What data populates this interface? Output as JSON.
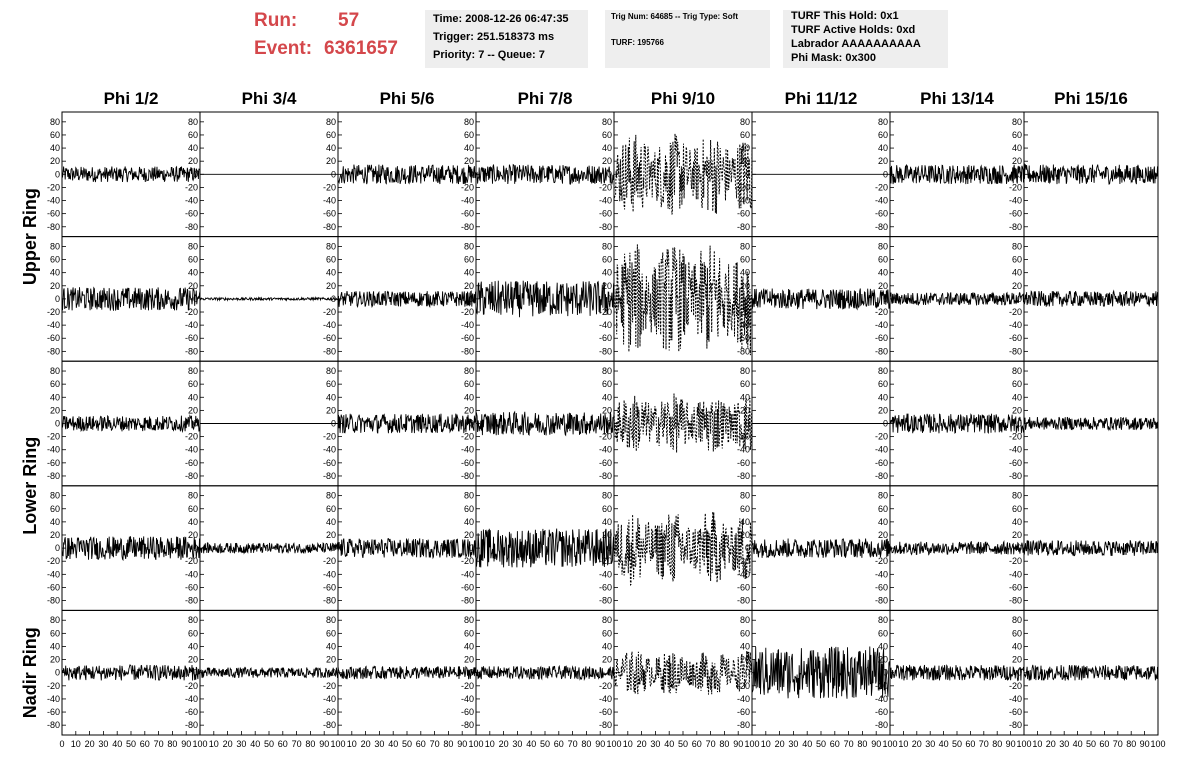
{
  "header": {
    "run_label": "Run:",
    "run_value": "57",
    "event_label": "Event:",
    "event_value": "6361657",
    "time": "Time: 2008-12-26 06:47:35",
    "trigger": "Trigger: 251.518373 ms",
    "priority": "Priority: 7 -- Queue: 7",
    "trig_num": "Trig Num: 64685 -- Trig Type: Soft",
    "turf": "TURF: 195766",
    "turf_hold": "TURF This Hold: 0x1",
    "turf_active": "TURF Active Holds: 0xd",
    "labrador": "Labrador AAAAAAAAAA",
    "phi_mask": "Phi Mask: 0x300",
    "text_color": "#d4474b",
    "box_color": "#eeeeee"
  },
  "chart_data": {
    "type": "line",
    "columns": [
      "Phi 1/2",
      "Phi 3/4",
      "Phi 5/6",
      "Phi 7/8",
      "Phi 9/10",
      "Phi 11/12",
      "Phi 13/14",
      "Phi 15/16"
    ],
    "ring_labels": [
      "Upper Ring",
      "Lower Ring",
      "Nadir Ring"
    ],
    "xlim": [
      0,
      100
    ],
    "ylim": [
      -95,
      95
    ],
    "y_ticks": [
      -80,
      -60,
      -40,
      -20,
      0,
      20,
      40,
      60,
      80
    ],
    "x_ticks": [
      0,
      10,
      20,
      30,
      40,
      50,
      60,
      70,
      80,
      90,
      100
    ],
    "masked_phi_column": "Phi 9/10",
    "masked_line_style": "dashed",
    "approx_amplitude": [
      [
        12,
        0,
        15,
        15,
        55,
        0,
        15,
        15
      ],
      [
        18,
        2,
        12,
        28,
        75,
        16,
        10,
        12
      ],
      [
        12,
        0,
        15,
        18,
        40,
        0,
        15,
        10
      ],
      [
        18,
        8,
        15,
        30,
        50,
        15,
        10,
        12
      ],
      [
        12,
        8,
        10,
        10,
        30,
        40,
        12,
        12
      ]
    ]
  }
}
